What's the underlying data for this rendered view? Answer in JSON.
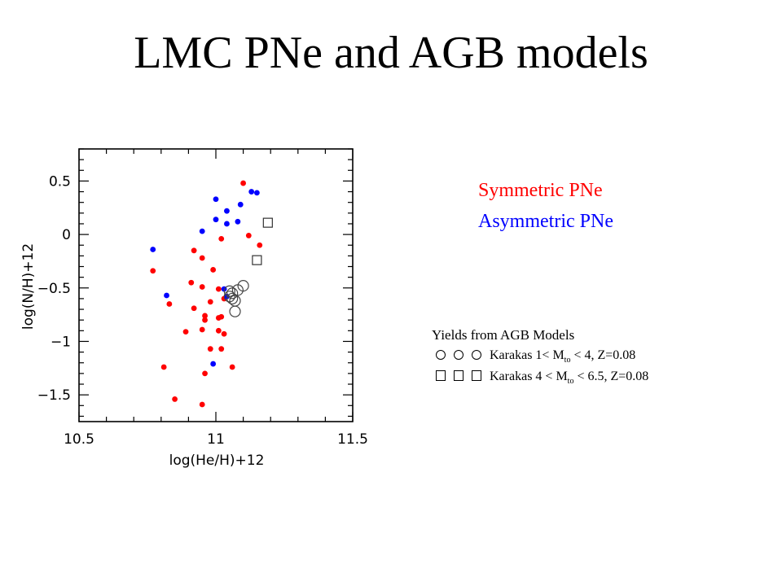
{
  "slide": {
    "title": "LMC PNe and AGB models"
  },
  "legend": {
    "symmetric": "Symmetric PNe",
    "asymmetric": "Asymmetric PNe",
    "symmetric_color": "#ff0000",
    "asymmetric_color": "#0000ff"
  },
  "models_note": {
    "title": "Yields from AGB Models",
    "line1_text": "Karakas 1< M",
    "line1_sub": "to",
    "line1_tail": " < 4, Z=0.08",
    "line2_text": "Karakas 4 < M",
    "line2_sub": "to",
    "line2_tail": " < 6.5, Z=0.08"
  },
  "chart_data": {
    "type": "scatter",
    "title": "",
    "xlabel": "log(He/H)+12",
    "ylabel": "log(N/H)+12",
    "xlim": [
      10.5,
      11.5
    ],
    "ylim": [
      -1.75,
      0.8
    ],
    "x_ticks": [
      "10.5",
      "11",
      "11.5"
    ],
    "y_ticks": [
      "0.5",
      "0",
      "−0.5",
      "−1",
      "−1.5"
    ],
    "x_tick_values": [
      10.5,
      11.0,
      11.5
    ],
    "y_tick_values": [
      0.5,
      0.0,
      -0.5,
      -1.0,
      -1.5
    ],
    "grid": false,
    "series": [
      {
        "name": "Symmetric PNe",
        "color": "#ff0000",
        "marker": "filled-circle",
        "points": [
          [
            11.1,
            0.48
          ],
          [
            11.02,
            -0.04
          ],
          [
            11.12,
            -0.01
          ],
          [
            11.16,
            -0.1
          ],
          [
            10.77,
            -0.34
          ],
          [
            10.92,
            -0.15
          ],
          [
            10.95,
            -0.22
          ],
          [
            10.99,
            -0.33
          ],
          [
            10.91,
            -0.45
          ],
          [
            10.95,
            -0.49
          ],
          [
            11.01,
            -0.51
          ],
          [
            10.83,
            -0.65
          ],
          [
            10.92,
            -0.69
          ],
          [
            10.98,
            -0.63
          ],
          [
            11.03,
            -0.6
          ],
          [
            10.96,
            -0.76
          ],
          [
            10.96,
            -0.8
          ],
          [
            11.01,
            -0.78
          ],
          [
            10.95,
            -0.89
          ],
          [
            10.89,
            -0.91
          ],
          [
            11.02,
            -0.77
          ],
          [
            11.01,
            -0.9
          ],
          [
            11.03,
            -0.93
          ],
          [
            10.98,
            -1.07
          ],
          [
            11.02,
            -1.07
          ],
          [
            10.81,
            -1.24
          ],
          [
            10.96,
            -1.3
          ],
          [
            11.06,
            -1.24
          ],
          [
            10.85,
            -1.54
          ],
          [
            10.95,
            -1.59
          ]
        ]
      },
      {
        "name": "Asymmetric PNe",
        "color": "#0000ff",
        "marker": "filled-circle",
        "points": [
          [
            11.13,
            0.4
          ],
          [
            11.15,
            0.39
          ],
          [
            11.09,
            0.28
          ],
          [
            11.0,
            0.33
          ],
          [
            11.04,
            0.22
          ],
          [
            11.0,
            0.14
          ],
          [
            11.08,
            0.12
          ],
          [
            11.04,
            0.1
          ],
          [
            10.95,
            0.03
          ],
          [
            10.77,
            -0.14
          ],
          [
            10.82,
            -0.57
          ],
          [
            11.03,
            -0.51
          ],
          [
            11.04,
            -0.58
          ],
          [
            10.99,
            -1.21
          ]
        ]
      },
      {
        "name": "Karakas 1< Mto < 4, Z=0.08",
        "color": "#000000",
        "marker": "open-circle",
        "points": [
          [
            11.05,
            -0.53
          ],
          [
            11.06,
            -0.55
          ],
          [
            11.06,
            -0.6
          ],
          [
            11.07,
            -0.62
          ],
          [
            11.07,
            -0.72
          ],
          [
            11.1,
            -0.48
          ],
          [
            11.08,
            -0.52
          ],
          [
            11.05,
            -0.58
          ]
        ]
      },
      {
        "name": "Karakas 4 < Mto < 6.5, Z=0.08",
        "color": "#000000",
        "marker": "open-square",
        "points": [
          [
            11.19,
            0.11
          ],
          [
            11.15,
            -0.24
          ]
        ]
      }
    ]
  }
}
